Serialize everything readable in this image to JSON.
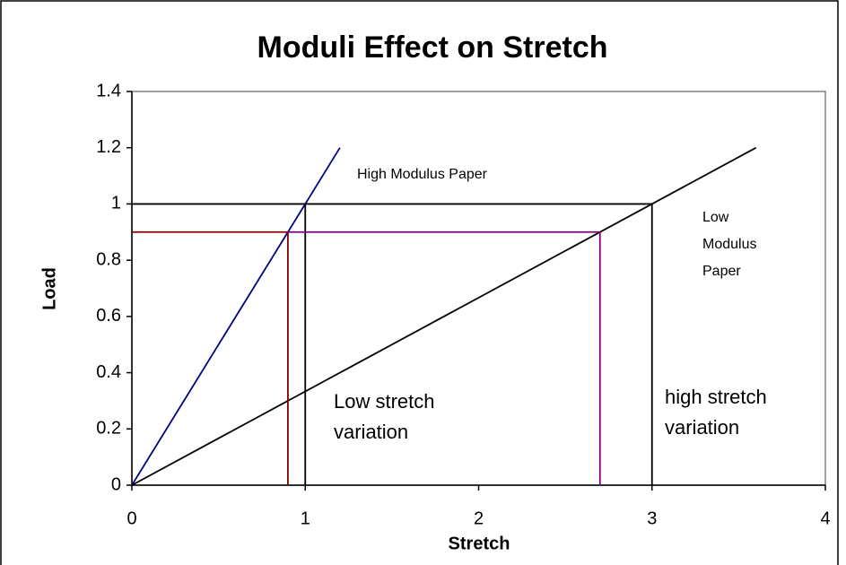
{
  "chart_data": {
    "type": "line",
    "title": "Moduli Effect on Stretch",
    "xlabel": "Stretch",
    "ylabel": "Load",
    "xlim": [
      0,
      4
    ],
    "xticks": [
      0,
      1,
      2,
      3,
      4
    ],
    "ylim": [
      0,
      1.4
    ],
    "yticks": [
      0,
      0.2,
      0.4,
      0.6,
      0.8,
      1,
      1.2,
      1.4
    ],
    "grid": false,
    "series": [
      {
        "color": "#000080",
        "x": [
          0,
          1.2
        ],
        "values": [
          0,
          1.2
        ]
      },
      {
        "color": "#000000",
        "x": [
          0,
          3.6
        ],
        "values": [
          0,
          1.2
        ]
      },
      {
        "color": "#000000",
        "x": [
          0,
          3
        ],
        "values": [
          1,
          1
        ]
      },
      {
        "color": "#000000",
        "x": [
          1,
          1
        ],
        "values": [
          0,
          1
        ]
      },
      {
        "color": "#000000",
        "x": [
          3,
          3
        ],
        "values": [
          0,
          1
        ]
      },
      {
        "color": "#800000",
        "x": [
          0,
          0.9
        ],
        "values": [
          0.9,
          0.9
        ]
      },
      {
        "color": "#800000",
        "x": [
          0.9,
          0.9
        ],
        "values": [
          0,
          0.9
        ]
      },
      {
        "color": "#800080",
        "x": [
          0.9,
          2.7
        ],
        "values": [
          0.9,
          0.9
        ]
      },
      {
        "color": "#800080",
        "x": [
          2.7,
          2.7
        ],
        "values": [
          0,
          0.9
        ]
      }
    ],
    "annotations": [
      [
        "High Modulus Paper"
      ],
      [
        "Low",
        "Modulus",
        "Paper"
      ],
      [
        "Low stretch",
        "variation"
      ],
      [
        "high stretch",
        "variation"
      ]
    ]
  }
}
